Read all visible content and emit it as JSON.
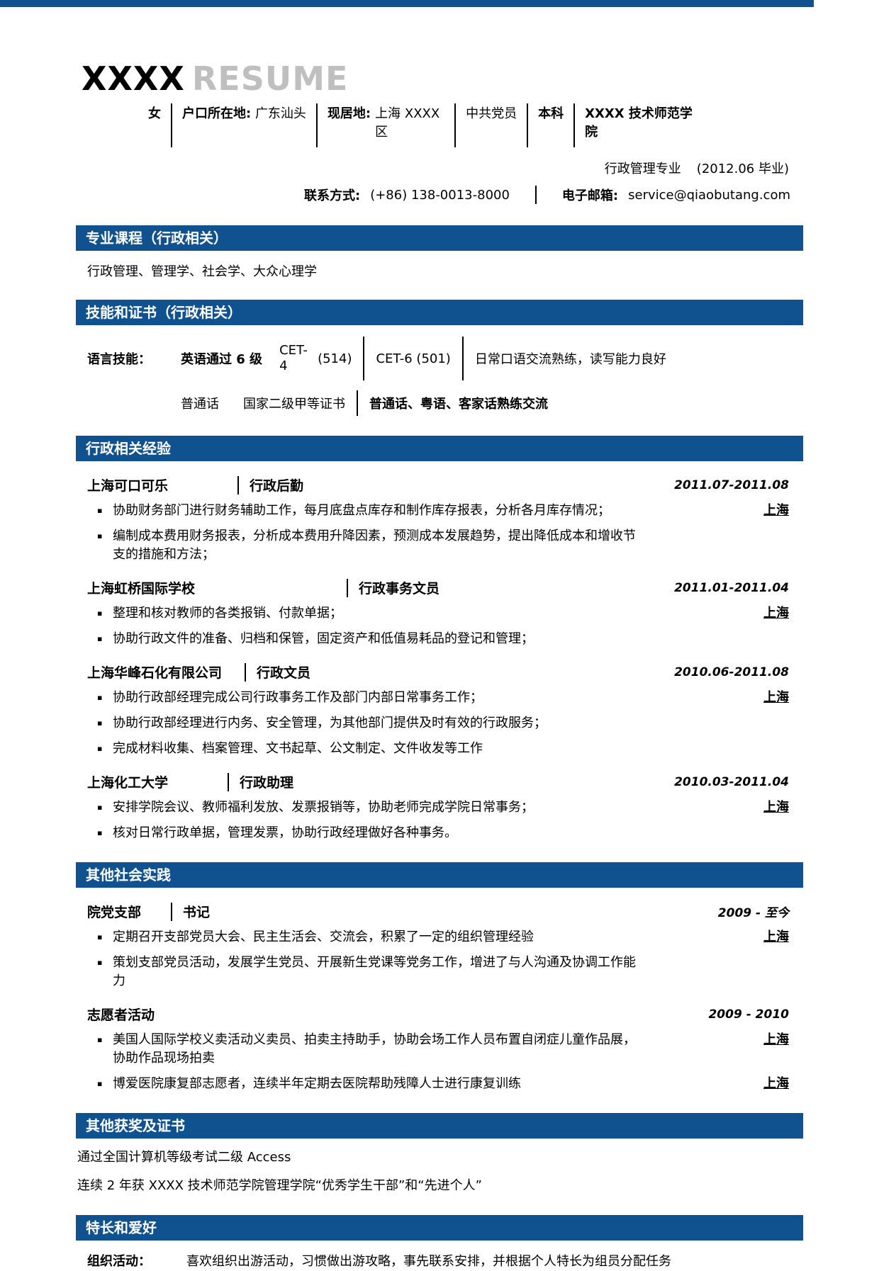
{
  "meta": {
    "accent_color": "#10518F",
    "title_gray_color": "#BFBFBF",
    "bullet_icon": "▪"
  },
  "header": {
    "name": "XXXX",
    "resume_word": "RESUME",
    "info": {
      "gender": "女",
      "hukou_label": "户口所在地:",
      "hukou": "广东汕头",
      "residence_label": "现居地:",
      "residence": "上海 XXXX 区",
      "party": "中共党员",
      "degree": "本科",
      "school": "XXXX 技术师范学院"
    },
    "major": "行政管理专业",
    "graduation": "(2012.06 毕业)",
    "phone_label": "联系方式:",
    "phone": "(+86) 138-0013-8000",
    "email_label": "电子邮箱:",
    "email": "service@qiaobutang.com"
  },
  "sections": {
    "courses": {
      "title": "专业课程（行政相关）",
      "content": "行政管理、管理学、社会学、大众心理学"
    },
    "skills": {
      "title": "技能和证书（行政相关）",
      "line1": {
        "label": "语言技能：",
        "item1": "英语通过 6 级",
        "cet4": "CET-4",
        "cet4_score": "(514)",
        "cet6": "CET-6 (501)",
        "desc": "日常口语交流熟练，读写能力良好"
      },
      "line2": {
        "item1": "普通话",
        "item2": "国家二级甲等证书",
        "desc": "普通话、粤语、客家话熟练交流"
      }
    },
    "experience": {
      "title": "行政相关经验",
      "entries": [
        {
          "company": "上海可口可乐",
          "position": "行政后勤",
          "date": "2011.07-2011.08",
          "bullets": [
            {
              "text": "协助财务部门进行财务辅助工作，每月底盘点库存和制作库存报表，分析各月库存情况；",
              "location": "上海"
            },
            {
              "text": "编制成本费用财务报表，分析成本费用升降因素，预测成本发展趋势，提出降低成本和增收节支的措施和方法；",
              "location": ""
            }
          ]
        },
        {
          "company": "上海虹桥国际学校",
          "position": "行政事务文员",
          "date": "2011.01-2011.04",
          "bullets": [
            {
              "text": "整理和核对教师的各类报销、付款单据；",
              "location": "上海"
            },
            {
              "text": "协助行政文件的准备、归档和保管，固定资产和低值易耗品的登记和管理；",
              "location": ""
            }
          ]
        },
        {
          "company": "上海华峰石化有限公司",
          "position": "行政文员",
          "date": "2010.06-2011.08",
          "bullets": [
            {
              "text": "协助行政部经理完成公司行政事务工作及部门内部日常事务工作；",
              "location": "上海"
            },
            {
              "text": "协助行政部经理进行内务、安全管理，为其他部门提供及时有效的行政服务；",
              "location": ""
            },
            {
              "text": "完成材料收集、档案管理、文书起草、公文制定、文件收发等工作",
              "location": ""
            }
          ]
        },
        {
          "company": "上海化工大学",
          "position": "行政助理",
          "date": "2010.03-2011.04",
          "bullets": [
            {
              "text": "安排学院会议、教师福利发放、发票报销等，协助老师完成学院日常事务；",
              "location": "上海"
            },
            {
              "text": "核对日常行政单据，管理发票，协助行政经理做好各种事务。",
              "location": ""
            }
          ]
        }
      ]
    },
    "social": {
      "title": "其他社会实践",
      "entries": [
        {
          "org": "院党支部",
          "role": "书记",
          "date": "2009 - 至今",
          "bullets": [
            {
              "text": "定期召开支部党员大会、民主生活会、交流会，积累了一定的组织管理经验",
              "location": "上海"
            },
            {
              "text": "策划支部党员活动，发展学生党员、开展新生党课等党务工作，增进了与人沟通及协调工作能力",
              "location": ""
            }
          ]
        },
        {
          "org": "志愿者活动",
          "role": "",
          "date": "2009 - 2010",
          "bullets": [
            {
              "text": "美国人国际学校义卖活动义卖员、拍卖主持助手，协助会场工作人员布置自闭症儿童作品展，协助作品现场拍卖",
              "location": "上海"
            },
            {
              "text": "博爱医院康复部志愿者，连续半年定期去医院帮助残障人士进行康复训练",
              "location": "上海"
            }
          ]
        }
      ]
    },
    "awards": {
      "title": "其他获奖及证书",
      "lines": [
        "通过全国计算机等级考试二级 Access",
        "连续 2 年获 XXXX 技术师范学院管理学院“优秀学生干部”和“先进个人”"
      ]
    },
    "hobbies": {
      "title": "特长和爱好",
      "label": "组织活动：",
      "content": "喜欢组织出游活动，习惯做出游攻略，事先联系安排，并根据个人特长为组员分配任务"
    }
  }
}
